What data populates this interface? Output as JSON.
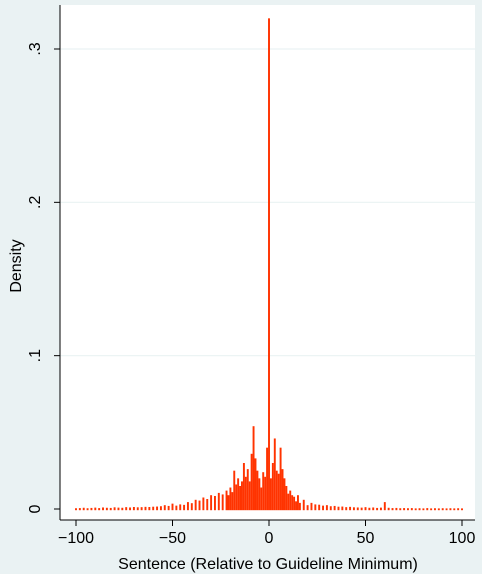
{
  "chart_data": {
    "type": "bar",
    "xlabel": "Sentence (Relative to Guideline Minimum)",
    "ylabel": "Density",
    "xlim": [
      -100,
      100
    ],
    "ylim": [
      0,
      0.32
    ],
    "x_ticks": [
      -100,
      -50,
      0,
      50,
      100
    ],
    "x_tick_labels": [
      "−100",
      "−50",
      "0",
      "50",
      "100"
    ],
    "y_ticks": [
      0,
      0.1,
      0.2,
      0.3
    ],
    "y_tick_labels": [
      "0",
      ".1",
      ".2",
      ".3"
    ],
    "grid": true,
    "legend": "none",
    "colors": {
      "background": "#eaf2f3",
      "plot_area": "#ffffff",
      "bars": "#ff3300",
      "grid": "#eaf2f3"
    },
    "bin_width": 1,
    "x": [
      -100,
      -98,
      -96,
      -94,
      -92,
      -90,
      -88,
      -86,
      -84,
      -82,
      -80,
      -78,
      -76,
      -74,
      -72,
      -70,
      -68,
      -66,
      -64,
      -62,
      -60,
      -58,
      -56,
      -54,
      -52,
      -50,
      -48,
      -46,
      -44,
      -42,
      -40,
      -38,
      -36,
      -34,
      -32,
      -30,
      -28,
      -26,
      -24,
      -22,
      -21,
      -20,
      -19,
      -18,
      -17,
      -16,
      -15,
      -14,
      -13,
      -12,
      -11,
      -10,
      -9,
      -8,
      -7,
      -6,
      -5,
      -4,
      -3,
      -2,
      -1,
      0,
      1,
      2,
      3,
      4,
      5,
      6,
      7,
      8,
      9,
      10,
      11,
      12,
      13,
      14,
      15,
      16,
      18,
      20,
      22,
      24,
      26,
      28,
      30,
      32,
      34,
      36,
      38,
      40,
      42,
      44,
      46,
      48,
      50,
      52,
      54,
      56,
      58,
      60,
      62,
      64,
      66,
      68,
      70,
      72,
      74,
      76,
      78,
      80,
      82,
      84,
      86,
      88,
      90,
      92,
      94,
      96,
      98,
      100
    ],
    "values": [
      0.0005,
      0.0006,
      0.0008,
      0.0005,
      0.0007,
      0.0009,
      0.0006,
      0.001,
      0.0008,
      0.0007,
      0.0011,
      0.0009,
      0.0008,
      0.0012,
      0.001,
      0.0013,
      0.0011,
      0.0012,
      0.0014,
      0.0013,
      0.0015,
      0.0016,
      0.0018,
      0.0025,
      0.002,
      0.0035,
      0.0022,
      0.003,
      0.0027,
      0.0045,
      0.0038,
      0.006,
      0.0055,
      0.0075,
      0.0065,
      0.009,
      0.0085,
      0.0105,
      0.0095,
      0.012,
      0.009,
      0.014,
      0.011,
      0.025,
      0.016,
      0.02,
      0.015,
      0.018,
      0.03,
      0.021,
      0.026,
      0.018,
      0.036,
      0.054,
      0.033,
      0.025,
      0.02,
      0.014,
      0.024,
      0.021,
      0.04,
      0.32,
      0.02,
      0.03,
      0.046,
      0.025,
      0.023,
      0.04,
      0.026,
      0.02,
      0.015,
      0.01,
      0.012,
      0.009,
      0.008,
      0.005,
      0.009,
      0.004,
      0.006,
      0.0025,
      0.004,
      0.003,
      0.0028,
      0.0022,
      0.0025,
      0.0018,
      0.002,
      0.0015,
      0.0016,
      0.0012,
      0.0014,
      0.0011,
      0.001,
      0.0009,
      0.0012,
      0.0008,
      0.001,
      0.0007,
      0.0009,
      0.0045,
      0.0008,
      0.0006,
      0.0007,
      0.0005,
      0.0006,
      0.0005,
      0.0006,
      0.0004,
      0.0005,
      0.0004,
      0.0006,
      0.0004,
      0.0005,
      0.0004,
      0.0005,
      0.0004,
      0.0005,
      0.0004,
      0.0005,
      0.0004
    ]
  }
}
